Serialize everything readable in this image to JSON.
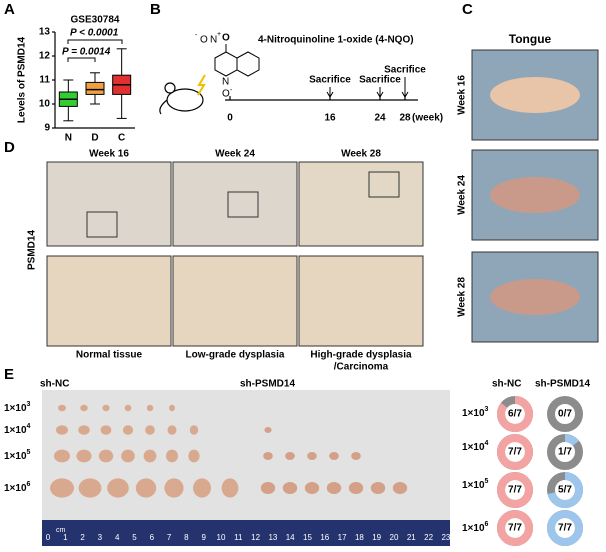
{
  "chart_data": {
    "type": "box",
    "title": "GSE30784",
    "y_label": "Levels of PSMD14",
    "categories": [
      "N",
      "D",
      "C"
    ],
    "boxes": [
      {
        "low": 9.3,
        "q1": 9.9,
        "median": 10.2,
        "q3": 10.5,
        "high": 11.0
      },
      {
        "low": 10.0,
        "q1": 10.4,
        "median": 10.6,
        "q3": 10.9,
        "high": 11.3
      },
      {
        "low": 9.4,
        "q1": 10.4,
        "median": 10.8,
        "q3": 11.2,
        "high": 12.3
      }
    ],
    "colors": [
      "#33cc33",
      "#f0a040",
      "#e03030"
    ],
    "ylim": [
      9,
      13
    ],
    "yticks": [
      9,
      10,
      11,
      12,
      13
    ],
    "annotations": [
      "P = 0.0014",
      "P < 0.0001"
    ]
  },
  "panels": [
    "A",
    "B",
    "C",
    "D",
    "E"
  ],
  "b": {
    "compound": "4-Nitroquinoline 1-oxide (4-NQO)",
    "atoms": [
      "O",
      "N",
      "+",
      "O",
      "-",
      "N",
      "O",
      "-"
    ],
    "weeks": [
      0,
      16,
      24,
      28
    ],
    "unit": "(week)",
    "events": [
      "Sacrifice",
      "Sacrifice",
      "Sacrifice"
    ]
  },
  "c": {
    "title": "Tongue",
    "rows": [
      "Week 16",
      "Week 24",
      "Week 28"
    ]
  },
  "d": {
    "columns": [
      "Week 16",
      "Week 24",
      "Week 28"
    ],
    "row_label": "PSMD14",
    "captions": [
      "Normal tissue",
      "Low-grade dysplasia",
      "High-grade dysplasia",
      "/Carcinoma"
    ]
  },
  "e": {
    "groups": [
      "sh-NC",
      "sh-PSMD14"
    ],
    "group_colors": [
      "#e03030",
      "#2a2ac8"
    ],
    "doses": [
      {
        "base": "1×10",
        "exp": "3"
      },
      {
        "base": "1×10",
        "exp": "4"
      },
      {
        "base": "1×10",
        "exp": "5"
      },
      {
        "base": "1×10",
        "exp": "6"
      }
    ],
    "ruler_unit": "cm",
    "ruler": [
      0,
      1,
      2,
      3,
      4,
      5,
      6,
      7,
      8,
      9,
      10,
      11,
      12,
      13,
      14,
      15,
      16,
      17,
      18,
      19,
      20,
      21,
      22,
      23
    ],
    "incidence": [
      [
        {
          "label": "6/7",
          "value": 6,
          "total": 7
        },
        {
          "label": "0/7",
          "value": 0,
          "total": 7
        }
      ],
      [
        {
          "label": "7/7",
          "value": 7,
          "total": 7
        },
        {
          "label": "1/7",
          "value": 1,
          "total": 7
        }
      ],
      [
        {
          "label": "7/7",
          "value": 7,
          "total": 7
        },
        {
          "label": "5/7",
          "value": 5,
          "total": 7
        }
      ],
      [
        {
          "label": "7/7",
          "value": 7,
          "total": 7
        },
        {
          "label": "7/7",
          "value": 7,
          "total": 7
        }
      ]
    ],
    "ring_colors": [
      "#f4a3a3",
      "#9ec5ec"
    ]
  }
}
